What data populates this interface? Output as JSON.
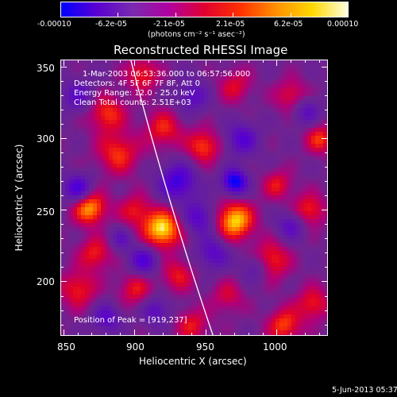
{
  "colorbar": {
    "tick_labels": [
      "-0.00010",
      "-6.2e-05",
      "-2.1e-05",
      "2.1e-05",
      "6.2e-05",
      "0.00010"
    ],
    "units_label": "(photons cm⁻² s⁻¹ asec⁻²)",
    "colors": [
      "#0000ff",
      "#5a00d0",
      "#7a2bb0",
      "#b000a0",
      "#e00030",
      "#ff3000",
      "#ff9000",
      "#ffd800",
      "#ffffe0"
    ]
  },
  "plot": {
    "title": "Reconstructed RHESSI Image",
    "info_lines": [
      "1-Mar-2003 06:53:36.000 to 06:57:56.000",
      "Detectors: 4F 5F 6F 7F 8F, Att 0",
      "Energy Range: 12.0 - 25.0 keV",
      "Clean    Total counts: 2.51E+03"
    ],
    "peak_label": "Position of Peak = [919,237]",
    "footer_date": "5-Jun-2013 05:37",
    "x_axis": {
      "label": "Heliocentric X (arcsec)",
      "tick_labels": [
        "850",
        "900",
        "950",
        "1000"
      ]
    },
    "y_axis": {
      "label": "Heliocentric Y (arcsec)",
      "tick_labels": [
        "200",
        "250",
        "300",
        "350"
      ]
    }
  },
  "chart_data": {
    "type": "heatmap",
    "title": "Reconstructed RHESSI Image",
    "xlabel": "Heliocentric X (arcsec)",
    "ylabel": "Heliocentric Y (arcsec)",
    "xlim": [
      848,
      1036
    ],
    "ylim": [
      162,
      355
    ],
    "color_range": [
      -0.0001,
      0.0001
    ],
    "limb": [
      [
        897,
        355
      ],
      [
        955,
        162
      ]
    ],
    "peak": [
      919,
      237
    ],
    "blobs": [
      {
        "x": 919,
        "y": 237,
        "v": 1.0,
        "s": 9
      },
      {
        "x": 970,
        "y": 243,
        "v": 0.95,
        "s": 9
      },
      {
        "x": 868,
        "y": 252,
        "v": 0.85,
        "s": 8
      },
      {
        "x": 948,
        "y": 295,
        "v": 0.6,
        "s": 8
      },
      {
        "x": 900,
        "y": 250,
        "v": 0.45,
        "s": 8
      },
      {
        "x": 888,
        "y": 290,
        "v": 0.55,
        "s": 10
      },
      {
        "x": 880,
        "y": 318,
        "v": 0.55,
        "s": 9
      },
      {
        "x": 920,
        "y": 307,
        "v": 0.5,
        "s": 9
      },
      {
        "x": 905,
        "y": 345,
        "v": 0.5,
        "s": 8
      },
      {
        "x": 860,
        "y": 195,
        "v": 0.5,
        "s": 9
      },
      {
        "x": 872,
        "y": 220,
        "v": 0.5,
        "s": 8
      },
      {
        "x": 930,
        "y": 205,
        "v": 0.45,
        "s": 8
      },
      {
        "x": 900,
        "y": 195,
        "v": 0.45,
        "s": 8
      },
      {
        "x": 940,
        "y": 170,
        "v": 0.45,
        "s": 8
      },
      {
        "x": 965,
        "y": 190,
        "v": 0.35,
        "s": 8
      },
      {
        "x": 1005,
        "y": 170,
        "v": 0.6,
        "s": 8
      },
      {
        "x": 1025,
        "y": 185,
        "v": 0.5,
        "s": 8
      },
      {
        "x": 995,
        "y": 215,
        "v": 0.6,
        "s": 9
      },
      {
        "x": 1022,
        "y": 250,
        "v": 0.55,
        "s": 8
      },
      {
        "x": 1000,
        "y": 268,
        "v": 0.45,
        "s": 7
      },
      {
        "x": 1030,
        "y": 300,
        "v": 0.55,
        "s": 7
      },
      {
        "x": 1010,
        "y": 330,
        "v": 0.45,
        "s": 8
      },
      {
        "x": 970,
        "y": 337,
        "v": 0.4,
        "s": 8
      },
      {
        "x": 975,
        "y": 300,
        "v": -0.55,
        "s": 8
      },
      {
        "x": 970,
        "y": 270,
        "v": -1.0,
        "s": 6
      },
      {
        "x": 860,
        "y": 265,
        "v": -0.7,
        "s": 7
      },
      {
        "x": 930,
        "y": 270,
        "v": -0.7,
        "s": 9
      },
      {
        "x": 945,
        "y": 245,
        "v": -0.55,
        "s": 8
      },
      {
        "x": 906,
        "y": 215,
        "v": -0.6,
        "s": 7
      },
      {
        "x": 955,
        "y": 220,
        "v": -0.5,
        "s": 8
      },
      {
        "x": 1010,
        "y": 240,
        "v": -0.5,
        "s": 7
      },
      {
        "x": 985,
        "y": 210,
        "v": -0.45,
        "s": 7
      },
      {
        "x": 880,
        "y": 175,
        "v": -0.5,
        "s": 7
      },
      {
        "x": 915,
        "y": 180,
        "v": -0.45,
        "s": 7
      },
      {
        "x": 1020,
        "y": 320,
        "v": -0.45,
        "s": 7
      },
      {
        "x": 940,
        "y": 330,
        "v": -0.45,
        "s": 8
      },
      {
        "x": 860,
        "y": 330,
        "v": -0.45,
        "s": 8
      },
      {
        "x": 890,
        "y": 230,
        "v": -0.35,
        "s": 6
      }
    ]
  }
}
